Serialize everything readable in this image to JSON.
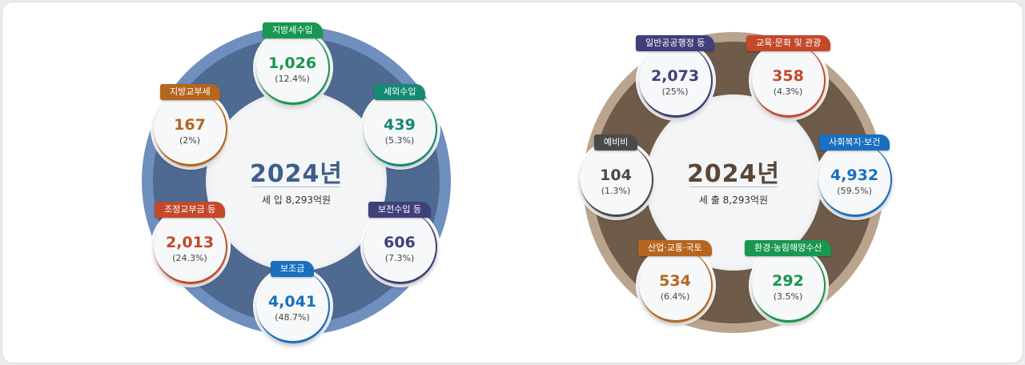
{
  "colors": {
    "left_ring_outer": "#6f8fbe",
    "left_ring_inner": "#4f6a91",
    "right_ring_outer": "#b9a58e",
    "right_ring_inner": "#6e5b4a",
    "left_year": "#3e5f8c",
    "right_year": "#5b4636"
  },
  "revenue": {
    "year": "2024년",
    "subtitle": "세 입   8,293억원",
    "items": [
      {
        "label": "지방세수입",
        "value": "1,026",
        "pct": "(12.4%)",
        "color": "#17974f"
      },
      {
        "label": "세외수입",
        "value": "439",
        "pct": "(5.3%)",
        "color": "#158a73"
      },
      {
        "label": "보전수입 등",
        "value": "606",
        "pct": "(7.3%)",
        "color": "#3f3f7a"
      },
      {
        "label": "보조금",
        "value": "4,041",
        "pct": "(48.7%)",
        "color": "#1a6fc0"
      },
      {
        "label": "조정교부금 등",
        "value": "2,013",
        "pct": "(24.3%)",
        "color": "#c4492b"
      },
      {
        "label": "지방교부세",
        "value": "167",
        "pct": "(2%)",
        "color": "#b5661e"
      }
    ]
  },
  "expenditure": {
    "year": "2024년",
    "subtitle": "세 출   8,293억원",
    "items": [
      {
        "label": "일반공공행정 등",
        "value": "2,073",
        "pct": "(25%)",
        "color": "#3f3f7a"
      },
      {
        "label": "교육·문화 및 관광",
        "value": "358",
        "pct": "(4.3%)",
        "color": "#c4492b"
      },
      {
        "label": "사회복지·보건",
        "value": "4,932",
        "pct": "(59.5%)",
        "color": "#1a6fc0"
      },
      {
        "label": "환경·농림해양수산",
        "value": "292",
        "pct": "(3.5%)",
        "color": "#17974f"
      },
      {
        "label": "산업·교통·국토",
        "value": "534",
        "pct": "(6.4%)",
        "color": "#b5661e"
      },
      {
        "label": "예비비",
        "value": "104",
        "pct": "(1.3%)",
        "color": "#4a4a4a"
      }
    ]
  }
}
